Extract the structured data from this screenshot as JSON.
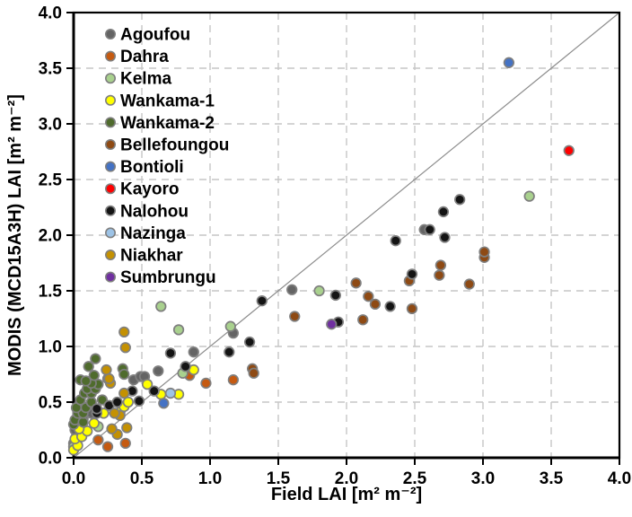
{
  "chart_data": {
    "type": "scatter",
    "title": "",
    "xlabel": "Field LAI [m² m⁻²]",
    "ylabel": "MODIS (MCD15A3H) LAI [m² m⁻²]",
    "xlim": [
      0.0,
      4.0
    ],
    "ylim": [
      0.0,
      4.0
    ],
    "xticks": [
      "0.0",
      "0.5",
      "1.0",
      "1.5",
      "2.0",
      "2.5",
      "3.0",
      "3.5",
      "4.0"
    ],
    "yticks": [
      "0.0",
      "0.5",
      "1.0",
      "1.5",
      "2.0",
      "2.5",
      "3.0",
      "3.5",
      "4.0"
    ],
    "grid": "dashed-both-0.5-step",
    "identity_line": true,
    "legend_position": "top-left-inside",
    "colors": {
      "grid": "#c6c6c6",
      "frame": "#000000",
      "identity_line": "#8c8c8c",
      "marker_outline": "#7f7f7f"
    },
    "series": [
      {
        "name": "Agoufou",
        "color": "#646464",
        "points": [
          [
            0.0,
            0.13
          ],
          [
            0.02,
            0.19
          ],
          [
            0.01,
            0.25
          ],
          [
            0.04,
            0.3
          ],
          [
            0.07,
            0.35
          ],
          [
            0.1,
            0.42
          ],
          [
            0.13,
            0.4
          ],
          [
            0.44,
            0.7
          ],
          [
            0.49,
            0.73
          ],
          [
            0.52,
            0.73
          ],
          [
            0.62,
            0.78
          ],
          [
            0.88,
            0.95
          ],
          [
            1.17,
            1.12
          ],
          [
            1.6,
            1.51
          ],
          [
            2.57,
            2.05
          ]
        ]
      },
      {
        "name": "Dahra",
        "color": "#c55a11",
        "points": [
          [
            0.18,
            0.16
          ],
          [
            0.25,
            0.1
          ],
          [
            0.38,
            0.13
          ],
          [
            0.85,
            0.74
          ],
          [
            0.97,
            0.67
          ],
          [
            1.17,
            0.7
          ]
        ]
      },
      {
        "name": "Kelma",
        "color": "#a9d18e",
        "points": [
          [
            0.0,
            0.1
          ],
          [
            0.18,
            0.28
          ],
          [
            0.64,
            1.36
          ],
          [
            0.77,
            1.15
          ],
          [
            0.8,
            0.76
          ],
          [
            1.15,
            1.18
          ],
          [
            1.8,
            1.5
          ],
          [
            3.34,
            2.35
          ]
        ]
      },
      {
        "name": "Wankama-1",
        "color": "#ffff00",
        "points": [
          [
            0.0,
            0.07
          ],
          [
            0.03,
            0.11
          ],
          [
            0.01,
            0.17
          ],
          [
            0.06,
            0.19
          ],
          [
            0.1,
            0.24
          ],
          [
            0.04,
            0.26
          ],
          [
            0.15,
            0.31
          ],
          [
            0.22,
            0.4
          ],
          [
            0.34,
            0.41
          ],
          [
            0.37,
            0.46
          ],
          [
            0.4,
            0.5
          ],
          [
            0.54,
            0.66
          ],
          [
            0.64,
            0.57
          ],
          [
            0.77,
            0.57
          ],
          [
            0.88,
            0.79
          ]
        ]
      },
      {
        "name": "Wankama-2",
        "color": "#4f6b2d",
        "points": [
          [
            0.0,
            0.3
          ],
          [
            0.01,
            0.34
          ],
          [
            0.07,
            0.32
          ],
          [
            0.03,
            0.4
          ],
          [
            0.07,
            0.4
          ],
          [
            0.02,
            0.45
          ],
          [
            0.09,
            0.45
          ],
          [
            0.05,
            0.52
          ],
          [
            0.13,
            0.5
          ],
          [
            0.21,
            0.52
          ],
          [
            0.08,
            0.58
          ],
          [
            0.13,
            0.58
          ],
          [
            0.1,
            0.62
          ],
          [
            0.16,
            0.62
          ],
          [
            0.18,
            0.66
          ],
          [
            0.13,
            0.67
          ],
          [
            0.05,
            0.7
          ],
          [
            0.09,
            0.69
          ],
          [
            0.15,
            0.74
          ],
          [
            0.25,
            0.71
          ],
          [
            0.11,
            0.82
          ],
          [
            0.16,
            0.89
          ],
          [
            0.36,
            0.8
          ],
          [
            0.37,
            0.75
          ]
        ]
      },
      {
        "name": "Bellefoungou",
        "color": "#8e4a14",
        "points": [
          [
            1.31,
            0.8
          ],
          [
            1.32,
            0.76
          ],
          [
            1.62,
            1.27
          ],
          [
            2.07,
            1.57
          ],
          [
            2.12,
            1.24
          ],
          [
            2.16,
            1.45
          ],
          [
            2.21,
            1.38
          ],
          [
            2.46,
            1.59
          ],
          [
            2.48,
            1.34
          ],
          [
            2.68,
            1.64
          ],
          [
            2.69,
            1.73
          ],
          [
            2.9,
            1.56
          ],
          [
            3.01,
            1.8
          ],
          [
            3.01,
            1.85
          ]
        ]
      },
      {
        "name": "Bontioli",
        "color": "#4472c4",
        "points": [
          [
            0.66,
            0.49
          ],
          [
            3.19,
            3.55
          ]
        ]
      },
      {
        "name": "Kayoro",
        "color": "#ff0000",
        "points": [
          [
            3.63,
            2.76
          ]
        ]
      },
      {
        "name": "Nalohou",
        "color": "#141414",
        "points": [
          [
            0.17,
            0.4
          ],
          [
            0.17,
            0.44
          ],
          [
            0.26,
            0.47
          ],
          [
            0.32,
            0.5
          ],
          [
            0.43,
            0.6
          ],
          [
            0.48,
            0.51
          ],
          [
            0.59,
            0.6
          ],
          [
            0.71,
            0.94
          ],
          [
            0.82,
            0.82
          ],
          [
            1.14,
            0.95
          ],
          [
            1.29,
            1.04
          ],
          [
            1.38,
            1.41
          ],
          [
            1.92,
            1.46
          ],
          [
            1.94,
            1.22
          ],
          [
            2.32,
            1.36
          ],
          [
            2.36,
            1.95
          ],
          [
            2.48,
            1.65
          ],
          [
            2.61,
            2.05
          ],
          [
            2.71,
            2.21
          ],
          [
            2.72,
            1.98
          ],
          [
            2.83,
            2.32
          ]
        ]
      },
      {
        "name": "Nazinga",
        "color": "#9dc3e6",
        "points": [
          [
            0.71,
            0.58
          ]
        ]
      },
      {
        "name": "Niakhar",
        "color": "#c49102",
        "points": [
          [
            0.32,
            0.21
          ],
          [
            0.28,
            0.26
          ],
          [
            0.39,
            0.27
          ],
          [
            0.34,
            0.38
          ],
          [
            0.3,
            0.4
          ],
          [
            0.37,
            0.58
          ],
          [
            0.27,
            0.67
          ],
          [
            0.26,
            0.71
          ],
          [
            0.24,
            0.79
          ],
          [
            0.38,
            0.99
          ],
          [
            0.37,
            1.13
          ]
        ]
      },
      {
        "name": "Sumbrungu",
        "color": "#7030a0",
        "points": [
          [
            1.89,
            1.2
          ]
        ]
      }
    ]
  }
}
